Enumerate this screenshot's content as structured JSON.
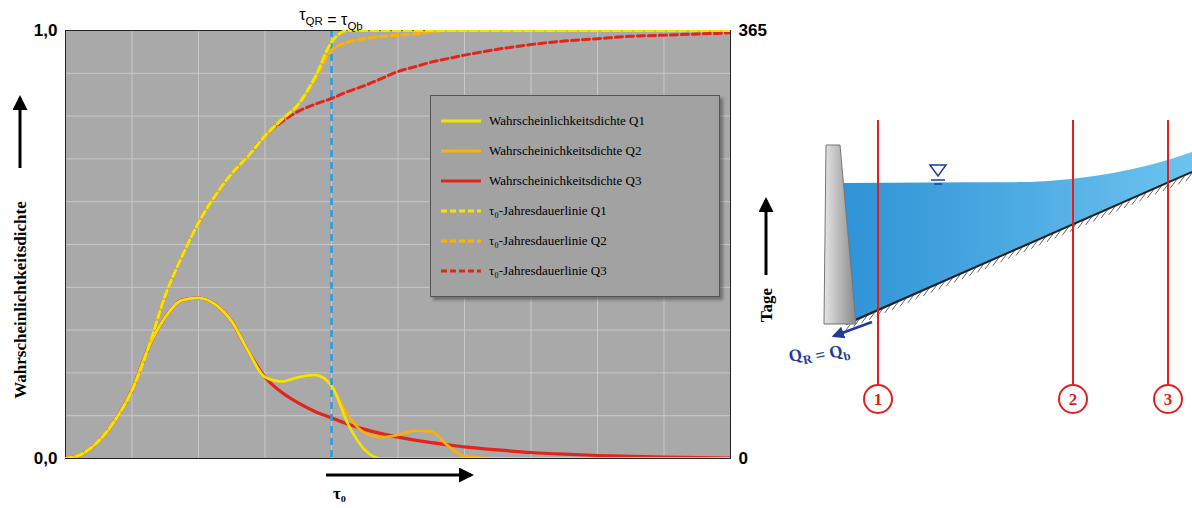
{
  "chart_data": {
    "type": "line",
    "y_label": "Wahrscheinlichtkeitsdichte",
    "y2_label": "Tage",
    "x_label": "τ₀",
    "xlim": [
      0,
      10
    ],
    "ylim": [
      0,
      1
    ],
    "yticks": [
      {
        "value": 0,
        "label": "0,0"
      },
      {
        "value": 1,
        "label": "1,0"
      }
    ],
    "y2lim": [
      0,
      365
    ],
    "y2ticks": [
      0,
      365
    ],
    "tick_labels": "y",
    "grid": true,
    "legend": "top-right",
    "annotations": [
      {
        "x": 4,
        "text": "τQR = τQb",
        "color": "#2b9ae0",
        "line_style": "dashed"
      }
    ],
    "x": [
      0,
      0.25,
      0.5,
      0.75,
      1,
      1.25,
      1.5,
      1.75,
      2,
      2.25,
      2.5,
      2.75,
      3,
      3.25,
      3.5,
      3.75,
      4,
      4.25,
      4.5,
      4.75,
      5,
      5.25,
      5.5,
      5.75,
      6,
      6.5,
      7,
      7.5,
      8,
      8.5,
      9,
      9.5,
      10
    ],
    "series": [
      {
        "name": "Wahrscheinlichkeitsdichte Q1",
        "color": "#f2e600",
        "line_style": "solid",
        "values": [
          0,
          0.01,
          0.04,
          0.09,
          0.16,
          0.26,
          0.33,
          0.37,
          0.375,
          0.36,
          0.32,
          0.25,
          0.19,
          0.18,
          0.19,
          0.195,
          0.17,
          0.08,
          0.02,
          0,
          0,
          0,
          0,
          0,
          0,
          0,
          0,
          0,
          0,
          0,
          0,
          0,
          0
        ]
      },
      {
        "name": "Wahrscheinichkeitsdichte Q2",
        "color": "#ffb000",
        "line_style": "solid",
        "values": [
          0,
          0.01,
          0.04,
          0.09,
          0.16,
          0.26,
          0.33,
          0.37,
          0.375,
          0.36,
          0.32,
          0.25,
          0.19,
          0.18,
          0.19,
          0.195,
          0.17,
          0.1,
          0.06,
          0.05,
          0.055,
          0.065,
          0.063,
          0.03,
          0.005,
          0,
          0,
          0,
          0,
          0,
          0,
          0,
          0
        ]
      },
      {
        "name": "Wahrscheinichkeitsdichte Q3",
        "color": "#e3241b",
        "line_style": "solid",
        "values": [
          0,
          0.01,
          0.04,
          0.09,
          0.16,
          0.26,
          0.33,
          0.37,
          0.375,
          0.36,
          0.32,
          0.25,
          0.19,
          0.155,
          0.13,
          0.11,
          0.095,
          0.08,
          0.068,
          0.058,
          0.05,
          0.043,
          0.037,
          0.032,
          0.027,
          0.02,
          0.014,
          0.01,
          0.007,
          0.005,
          0.003,
          0.002,
          0.001
        ]
      },
      {
        "name": "τ₀-Jahresdauerlinie Q1",
        "color": "#f2e600",
        "line_style": "dashed",
        "axis": "y2",
        "values": [
          0,
          4,
          15,
          33,
          58,
          95,
          139,
          172,
          201,
          224,
          243,
          258,
          275,
          289,
          302,
          325,
          355,
          365,
          365,
          365,
          365,
          365,
          365,
          365,
          365,
          365,
          365,
          365,
          365,
          365,
          365,
          365,
          365
        ]
      },
      {
        "name": "τ₀-Jahresdauerlinie Q2",
        "color": "#ffb000",
        "line_style": "dashed",
        "axis": "y2",
        "values": [
          0,
          4,
          15,
          33,
          58,
          95,
          139,
          172,
          201,
          224,
          243,
          258,
          275,
          289,
          302,
          323,
          348,
          355,
          358,
          360,
          361,
          362,
          364,
          365,
          365,
          365,
          365,
          365,
          365,
          365,
          365,
          365,
          365
        ]
      },
      {
        "name": "τ₀-Jahresdauerlinie Q3",
        "color": "#e3241b",
        "line_style": "dashed",
        "axis": "y2",
        "values": [
          0,
          4,
          15,
          33,
          58,
          95,
          139,
          172,
          201,
          224,
          243,
          258,
          275,
          287,
          296,
          302,
          307,
          313,
          318,
          324,
          330,
          334,
          338,
          341,
          344,
          349,
          353,
          356,
          358,
          360,
          361,
          362,
          363
        ]
      }
    ]
  },
  "diagram": {
    "sections": [
      "1",
      "2",
      "3"
    ],
    "outflow_label": "QR = Qb"
  }
}
